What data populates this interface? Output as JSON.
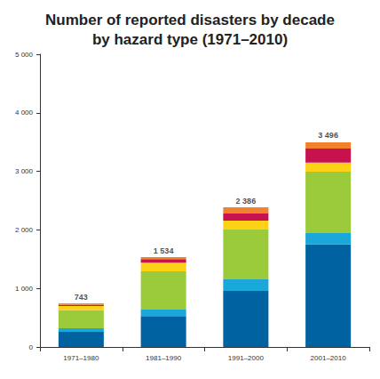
{
  "chart_data": {
    "type": "bar",
    "title": "Number of reported disasters by decade\nby hazard type (1971–2010)",
    "categories": [
      "1971–1980",
      "1981–1990",
      "1991–2000",
      "2001–2010"
    ],
    "stacked": true,
    "grid": false,
    "series": [
      {
        "color": "#0062a0",
        "values": [
          260,
          530,
          958,
          1750
        ]
      },
      {
        "color": "#1aa7d9",
        "values": [
          60,
          110,
          197,
          195
        ]
      },
      {
        "color": "#9bcb3b",
        "values": [
          310,
          650,
          851,
          1050
        ]
      },
      {
        "color": "#fdd116",
        "values": [
          70,
          150,
          152,
          155
        ]
      },
      {
        "color": "#c7124f",
        "values": [
          18,
          60,
          122,
          240
        ]
      },
      {
        "color": "#f3812b",
        "values": [
          25,
          34,
          106,
          106
        ]
      }
    ],
    "annotations": [
      {
        "x": "1971–1980",
        "value": 743,
        "label": "743"
      },
      {
        "x": "1981–1990",
        "value": 1534,
        "label": "1 534"
      },
      {
        "x": "1991–2000",
        "value": 2386,
        "label": "2 386"
      },
      {
        "x": "2001–2010",
        "value": 3496,
        "label": "3 496"
      }
    ],
    "ylim": [
      0,
      5000
    ],
    "yticks": [
      0,
      {
        "value": 1000,
        "label": "1 000"
      },
      {
        "value": 2000,
        "label": "2 000"
      },
      {
        "value": 3000,
        "label": "3 000"
      },
      {
        "value": 4000,
        "label": "4 000"
      },
      {
        "value": 5000,
        "label": "5 000"
      }
    ]
  }
}
